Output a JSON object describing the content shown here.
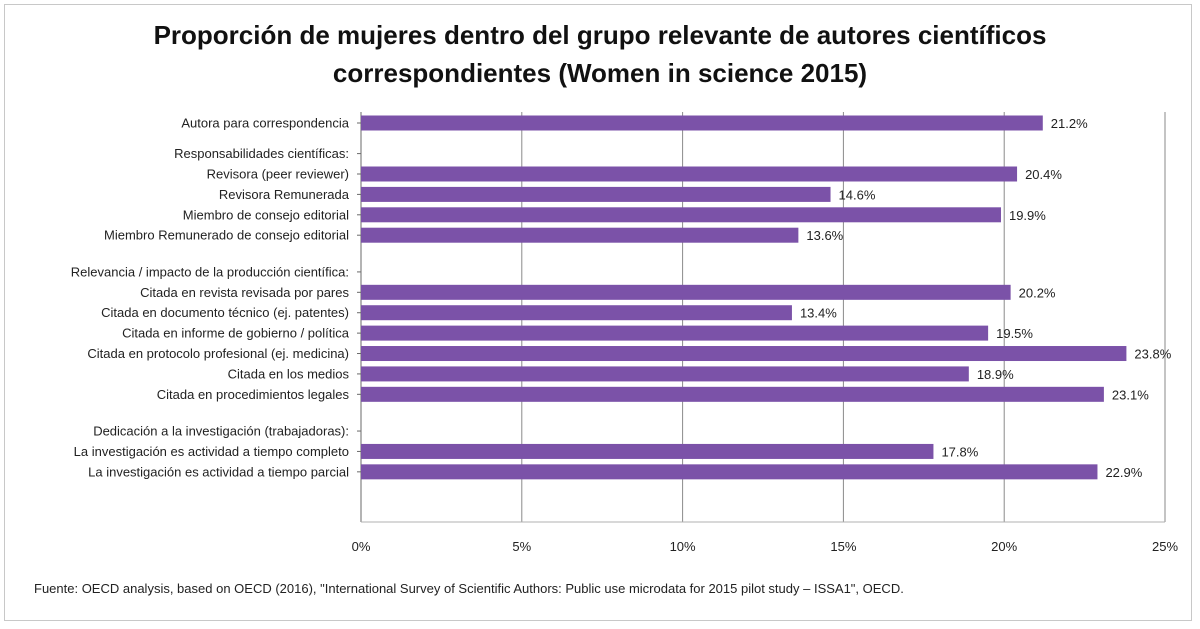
{
  "chart_data": {
    "type": "bar",
    "orientation": "horizontal",
    "title_lines": [
      "Proporción de mujeres dentro del grupo relevante de autores científicos",
      "correspondientes (Women in science 2015)"
    ],
    "xlim": [
      0,
      25
    ],
    "x_ticks": [
      "0%",
      "5%",
      "10%",
      "15%",
      "20%",
      "25%"
    ],
    "x_tick_values": [
      0,
      5,
      10,
      15,
      20,
      25
    ],
    "grid": "vertical",
    "bar_color": "#7b52a8",
    "categories": [
      "Autora para correspondencia",
      "Responsabilidades científicas:",
      "Revisora (peer reviewer)",
      "Revisora Remunerada",
      "Miembro de consejo editorial",
      "Miembro Remunerado de consejo editorial",
      "Relevancia / impacto de la producción científica:",
      "Citada en revista revisada por pares",
      "Citada en documento técnico (ej. patentes)",
      "Citada en informe de gobierno / política",
      "Citada en protocolo  profesional (ej. medicina)",
      "Citada en los medios",
      "Citada en procedimientos legales",
      "Dedicación a la investigación (trabajadoras):",
      "La investigación es actividad a tiempo completo",
      "La investigación es actividad a tiempo parcial"
    ],
    "values": [
      21.2,
      null,
      20.4,
      14.6,
      19.9,
      13.6,
      null,
      20.2,
      13.4,
      19.5,
      23.8,
      18.9,
      23.1,
      null,
      17.8,
      22.9
    ],
    "value_labels": [
      "21.2%",
      "",
      "20.4%",
      "14.6%",
      "19.9%",
      "13.6%",
      "",
      "20.2%",
      "13.4%",
      "19.5%",
      "23.8%",
      "18.9%",
      "23.1%",
      "",
      "17.8%",
      "22.9%"
    ],
    "row_slots": [
      0,
      1.5,
      2.5,
      3.5,
      4.5,
      5.5,
      7.3,
      8.3,
      9.3,
      10.3,
      11.3,
      12.3,
      13.3,
      15.1,
      16.1,
      17.1
    ]
  },
  "source": "Fuente: OECD analysis, based on OECD (2016), \"International Survey of Scientific Authors: Public use microdata for 2015 pilot study – ISSA1\", OECD."
}
